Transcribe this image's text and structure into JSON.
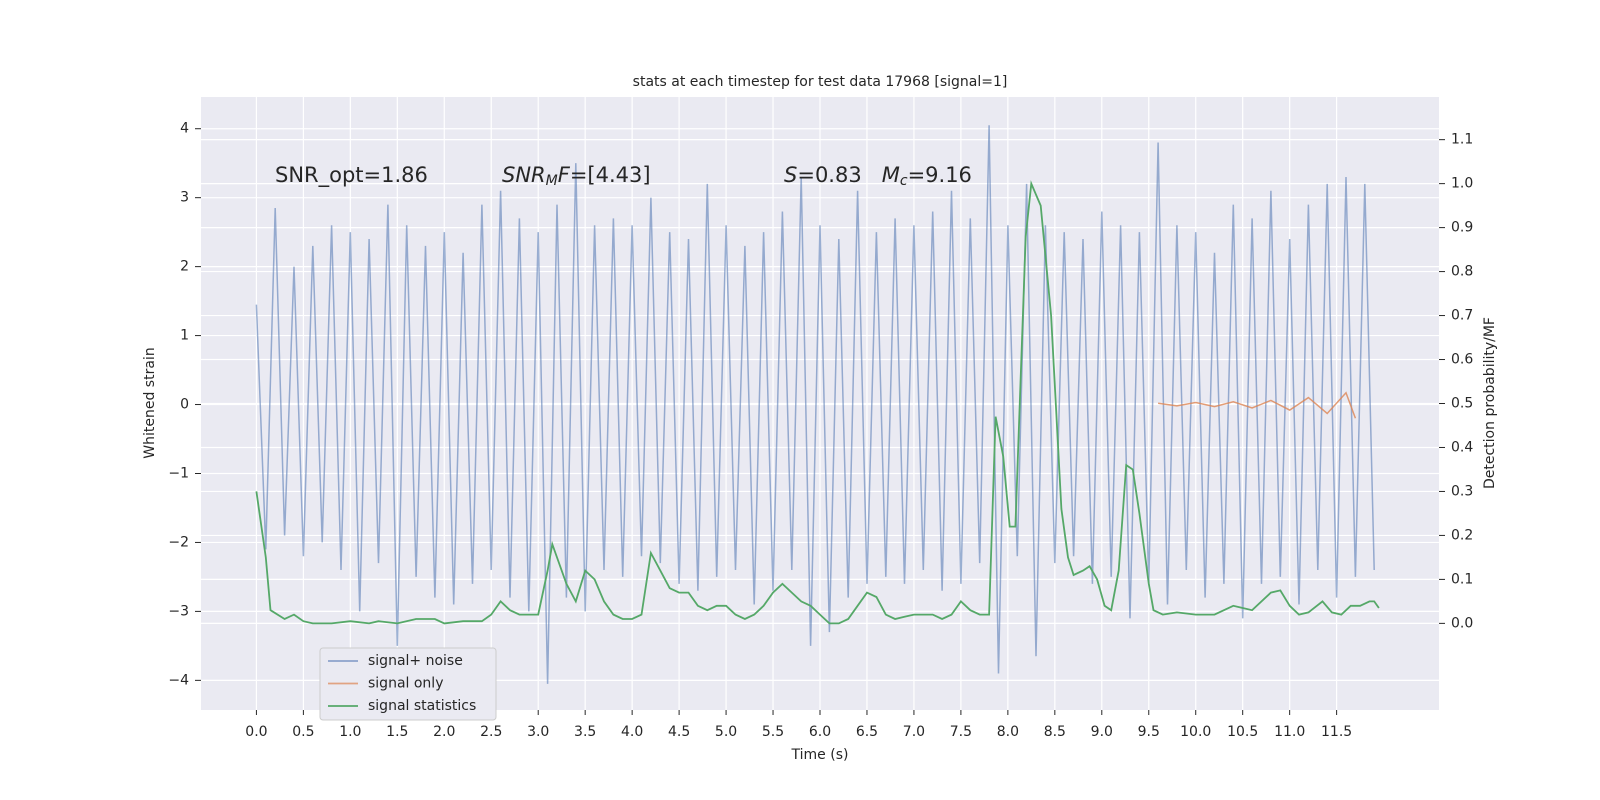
{
  "chart_data": {
    "type": "line",
    "title": "stats at each timestep for test data 17968 [signal=1]",
    "x_label": "Time (s)",
    "y_label": "Whitened strain",
    "y2_label": "Detection probability/MF",
    "xlim": [
      -0.59,
      12.59
    ],
    "ylim": [
      -4.43,
      4.46
    ],
    "y2lim": [
      -0.197,
      1.197
    ],
    "xticks": [
      {
        "value": 0,
        "label": "0.0"
      },
      0.5,
      {
        "value": 1,
        "label": "1.0"
      },
      1.5,
      {
        "value": 2,
        "label": "2.0"
      },
      2.5,
      {
        "value": 3,
        "label": "3.0"
      },
      3.5,
      {
        "value": 4,
        "label": "4.0"
      },
      4.5,
      {
        "value": 5,
        "label": "5.0"
      },
      5.5,
      {
        "value": 6,
        "label": "6.0"
      },
      6.5,
      {
        "value": 7,
        "label": "7.0"
      },
      7.5,
      {
        "value": 8,
        "label": "8.0"
      },
      8.5,
      {
        "value": 9,
        "label": "9.0"
      },
      9.5,
      {
        "value": 10,
        "label": "10.0"
      },
      10.5,
      {
        "value": 11,
        "label": "11.0"
      },
      11.5
    ],
    "yticks": [
      {
        "value": -4,
        "label": "−4"
      },
      {
        "value": -3,
        "label": "−3"
      },
      {
        "value": -2,
        "label": "−2"
      },
      {
        "value": -1,
        "label": "−1"
      },
      0,
      1,
      2,
      3,
      4
    ],
    "y2ticks": [
      {
        "value": 0,
        "label": "0.0"
      },
      0.1,
      0.2,
      0.3,
      0.4,
      0.5,
      0.6,
      0.7,
      0.8,
      0.9,
      {
        "value": 1,
        "label": "1.0"
      },
      1.1
    ],
    "grid": true,
    "legend": "lower left",
    "annotations": [
      {
        "parts": [
          {
            "text": "SNR_opt=1.86"
          }
        ]
      },
      {
        "parts": [
          {
            "text": "SNR",
            "italic": true
          },
          {
            "text": "M",
            "italic": true,
            "sub": true
          },
          {
            "text": "F",
            "italic": true
          },
          {
            "text": "=[4.43]"
          }
        ]
      },
      {
        "parts": [
          {
            "text": "S",
            "italic": true
          },
          {
            "text": "=0.83   "
          },
          {
            "text": "M",
            "italic": true
          },
          {
            "text": "c",
            "italic": true,
            "sub": true
          },
          {
            "text": "=9.16"
          }
        ]
      }
    ],
    "series": [
      {
        "name": "signal+ noise",
        "color": "#4c72b0",
        "x": [
          0.0,
          0.1,
          0.2,
          0.3,
          0.4,
          0.5,
          0.6,
          0.7,
          0.8,
          0.9,
          1.0,
          1.1,
          1.2,
          1.3,
          1.4,
          1.5,
          1.6,
          1.7,
          1.8,
          1.9,
          2.0,
          2.1,
          2.2,
          2.3,
          2.4,
          2.5,
          2.6,
          2.7,
          2.8,
          2.9,
          3.0,
          3.1,
          3.2,
          3.3,
          3.4,
          3.5,
          3.6,
          3.7,
          3.8,
          3.9,
          4.0,
          4.1,
          4.2,
          4.3,
          4.4,
          4.5,
          4.6,
          4.7,
          4.8,
          4.9,
          5.0,
          5.1,
          5.2,
          5.3,
          5.4,
          5.5,
          5.6,
          5.7,
          5.8,
          5.9,
          6.0,
          6.1,
          6.2,
          6.3,
          6.4,
          6.5,
          6.6,
          6.7,
          6.8,
          6.9,
          7.0,
          7.1,
          7.2,
          7.3,
          7.4,
          7.5,
          7.6,
          7.7,
          7.8,
          7.9,
          8.0,
          8.1,
          8.2,
          8.3,
          8.4,
          8.5,
          8.6,
          8.7,
          8.8,
          8.9,
          9.0,
          9.1,
          9.2,
          9.3,
          9.4,
          9.5,
          9.6,
          9.7,
          9.8,
          9.9,
          10.0,
          10.1,
          10.2,
          10.3,
          10.4,
          10.5,
          10.6,
          10.7,
          10.8,
          10.9,
          11.0,
          11.1,
          11.2,
          11.3,
          11.4,
          11.5,
          11.6,
          11.7,
          11.8,
          11.9
        ],
        "values": [
          1.45,
          -2.1,
          2.85,
          -1.9,
          2.0,
          -2.2,
          2.3,
          -2.0,
          2.6,
          -2.4,
          2.5,
          -3.0,
          2.4,
          -2.3,
          2.9,
          -3.5,
          2.6,
          -2.5,
          2.3,
          -2.8,
          2.5,
          -2.9,
          2.2,
          -2.6,
          2.9,
          -2.4,
          3.1,
          -2.8,
          2.7,
          -3.0,
          2.5,
          -4.05,
          2.9,
          -2.8,
          3.5,
          -3.0,
          2.6,
          -2.4,
          2.7,
          -2.5,
          2.6,
          -2.2,
          3.0,
          -2.3,
          2.5,
          -2.6,
          2.4,
          -2.7,
          3.2,
          -2.5,
          2.6,
          -2.4,
          2.3,
          -2.9,
          2.5,
          -2.7,
          2.8,
          -2.4,
          3.3,
          -3.5,
          2.6,
          -3.3,
          2.4,
          -2.8,
          3.1,
          -2.6,
          2.5,
          -2.5,
          2.7,
          -2.6,
          2.6,
          -2.4,
          2.8,
          -2.7,
          3.1,
          -2.6,
          2.7,
          -2.3,
          4.05,
          -3.9,
          2.6,
          -2.2,
          3.2,
          -3.65,
          2.6,
          -2.3,
          2.5,
          -2.2,
          2.4,
          -2.6,
          2.8,
          -2.5,
          2.6,
          -3.1,
          2.5,
          -2.6,
          3.8,
          -2.9,
          2.6,
          -2.4,
          2.5,
          -2.8,
          2.2,
          -2.6,
          2.9,
          -3.1,
          2.7,
          -2.6,
          3.1,
          -2.5,
          2.4,
          -2.9,
          2.9,
          -2.4,
          3.2,
          -2.8,
          3.3,
          -2.5,
          3.2,
          -2.4
        ]
      },
      {
        "name": "signal only",
        "color": "#dd8452",
        "x": [
          9.6,
          9.8,
          10.0,
          10.2,
          10.4,
          10.6,
          10.8,
          11.0,
          11.2,
          11.4,
          11.6,
          11.7
        ],
        "values": [
          0.02,
          -0.02,
          0.03,
          -0.03,
          0.04,
          -0.05,
          0.06,
          -0.08,
          0.1,
          -0.13,
          0.17,
          -0.2
        ]
      },
      {
        "name": "signal statistics",
        "color": "#55a868",
        "axis": "y2",
        "x": [
          0.0,
          0.1,
          0.15,
          0.3,
          0.4,
          0.5,
          0.6,
          0.8,
          1.0,
          1.2,
          1.3,
          1.5,
          1.7,
          1.9,
          2.0,
          2.2,
          2.4,
          2.5,
          2.6,
          2.7,
          2.8,
          3.0,
          3.1,
          3.15,
          3.3,
          3.4,
          3.5,
          3.6,
          3.7,
          3.8,
          3.9,
          4.0,
          4.1,
          4.2,
          4.3,
          4.4,
          4.5,
          4.6,
          4.7,
          4.8,
          4.9,
          5.0,
          5.1,
          5.2,
          5.3,
          5.4,
          5.5,
          5.6,
          5.7,
          5.8,
          5.9,
          6.0,
          6.1,
          6.2,
          6.3,
          6.4,
          6.5,
          6.6,
          6.7,
          6.8,
          6.9,
          7.0,
          7.2,
          7.3,
          7.4,
          7.5,
          7.6,
          7.7,
          7.8,
          7.87,
          7.95,
          8.02,
          8.08,
          8.19,
          8.25,
          8.35,
          8.46,
          8.57,
          8.64,
          8.7,
          8.8,
          8.87,
          8.95,
          9.03,
          9.1,
          9.18,
          9.26,
          9.33,
          9.4,
          9.5,
          9.55,
          9.65,
          9.8,
          10.0,
          10.2,
          10.3,
          10.4,
          10.5,
          10.6,
          10.8,
          10.9,
          11.0,
          11.1,
          11.2,
          11.35,
          11.45,
          11.55,
          11.65,
          11.75,
          11.85,
          11.9,
          11.95
        ],
        "values": [
          0.3,
          0.15,
          0.03,
          0.01,
          0.02,
          0.005,
          0.0,
          0.0,
          0.005,
          0.0,
          0.005,
          0.0,
          0.01,
          0.01,
          0.0,
          0.005,
          0.005,
          0.02,
          0.05,
          0.03,
          0.02,
          0.02,
          0.12,
          0.18,
          0.09,
          0.05,
          0.12,
          0.1,
          0.05,
          0.02,
          0.01,
          0.01,
          0.02,
          0.16,
          0.12,
          0.08,
          0.07,
          0.07,
          0.04,
          0.03,
          0.04,
          0.04,
          0.02,
          0.01,
          0.02,
          0.04,
          0.07,
          0.09,
          0.07,
          0.05,
          0.04,
          0.02,
          0.0,
          0.0,
          0.01,
          0.04,
          0.07,
          0.06,
          0.02,
          0.01,
          0.015,
          0.02,
          0.02,
          0.01,
          0.02,
          0.05,
          0.03,
          0.02,
          0.02,
          0.47,
          0.38,
          0.22,
          0.22,
          0.88,
          1.0,
          0.95,
          0.7,
          0.26,
          0.15,
          0.11,
          0.12,
          0.13,
          0.1,
          0.04,
          0.03,
          0.12,
          0.36,
          0.35,
          0.25,
          0.09,
          0.03,
          0.02,
          0.025,
          0.02,
          0.02,
          0.03,
          0.04,
          0.035,
          0.03,
          0.07,
          0.075,
          0.04,
          0.02,
          0.025,
          0.05,
          0.025,
          0.02,
          0.04,
          0.04,
          0.05,
          0.05,
          0.035
        ]
      }
    ]
  }
}
